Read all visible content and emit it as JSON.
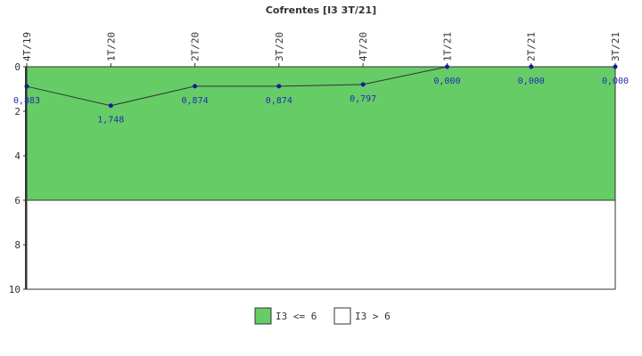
{
  "chart_data": {
    "type": "line",
    "title": "Cofrentes [I3 3T/21]",
    "categories": [
      "4T/19",
      "1T/20",
      "2T/20",
      "3T/20",
      "4T/20",
      "1T/21",
      "2T/21",
      "3T/21"
    ],
    "series": [
      {
        "values": [
          0.883,
          1.748,
          0.874,
          0.874,
          0.797,
          0.0,
          0.0,
          0.0
        ],
        "labels": [
          "0,883",
          "1,748",
          "0,874",
          "0,874",
          "0,797",
          "0,000",
          "0,000",
          "0,000"
        ],
        "color": "#1a1aa0"
      }
    ],
    "y_axis": {
      "min": 0,
      "max": 10,
      "reversed": true,
      "ticks": [
        0,
        2,
        4,
        6,
        8,
        10
      ]
    },
    "x_tick_position": "top",
    "bands": [
      {
        "name": "I3 <= 6",
        "from": 0,
        "to": 6,
        "color": "#66cc66"
      },
      {
        "name": "I3 > 6",
        "from": 6,
        "to": 10,
        "color": "#ffffff"
      }
    ],
    "legend_placement": "bottom-center"
  }
}
